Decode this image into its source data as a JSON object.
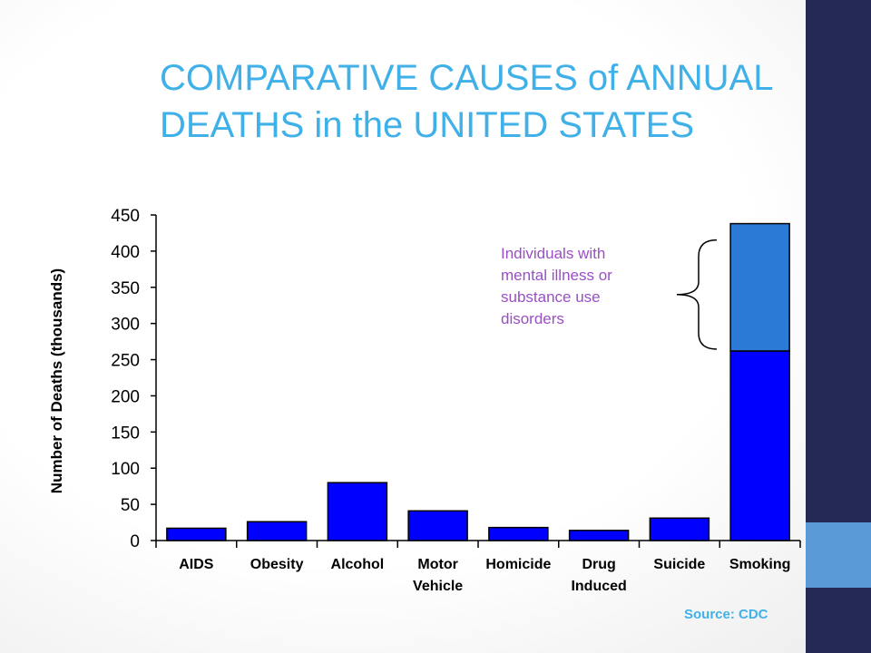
{
  "slide": {
    "title": "COMPARATIVE CAUSES of ANNUAL\nDEATHS in the UNITED STATES",
    "annotation": "Individuals with\nmental illness or\nsubstance use\ndisorders",
    "source": "Source: CDC",
    "colors": {
      "title": "#3fb1e8",
      "bar": "#0000ff",
      "bar_highlight": "#2b7bd6",
      "annotation": "#9a4fc6",
      "sidebar": "#252a55",
      "sidebar_accent": "#5b9bd5"
    }
  },
  "chart_data": {
    "type": "bar",
    "title": "",
    "xlabel": "",
    "ylabel": "Number of Deaths (thousands)",
    "categories": [
      "AIDS",
      "Obesity",
      "Alcohol",
      "Motor Vehicle",
      "Homicide",
      "Drug Induced",
      "Suicide",
      "Smoking"
    ],
    "series": [
      {
        "values": [
          17,
          26,
          80,
          41,
          18,
          14,
          31,
          262
        ]
      },
      {
        "values": [
          0,
          0,
          0,
          0,
          0,
          0,
          0,
          176
        ]
      }
    ],
    "stacked": true,
    "ylim": [
      0,
      450
    ],
    "yticks": [
      0,
      50,
      100,
      150,
      200,
      250,
      300,
      350,
      400,
      450
    ],
    "grid": false,
    "bracket_spans": [
      262,
      438
    ]
  }
}
